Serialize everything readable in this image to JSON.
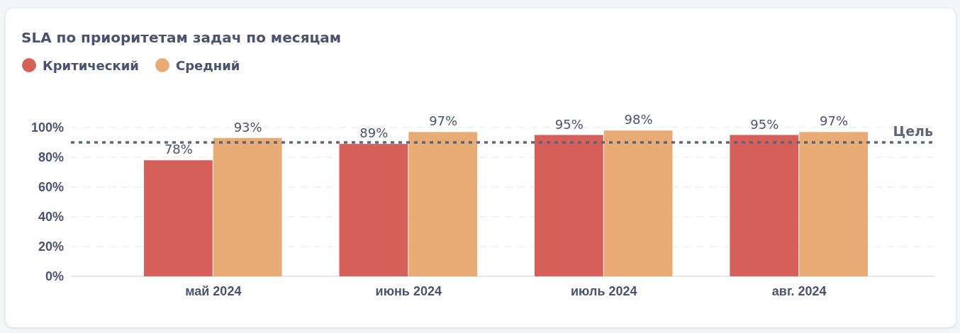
{
  "chart_data": {
    "type": "bar",
    "title": "SLA по приоритетам задач по месяцам",
    "categories": [
      "май 2024",
      "июнь 2024",
      "июль 2024",
      "авг. 2024"
    ],
    "series": [
      {
        "name": "Критический",
        "color": "#d65f59",
        "values": [
          78,
          89,
          95,
          95
        ],
        "value_labels": [
          "78%",
          "89%",
          "95%",
          "95%"
        ]
      },
      {
        "name": "Средний",
        "color": "#e8ab76",
        "values": [
          93,
          97,
          98,
          97
        ],
        "value_labels": [
          "93%",
          "97%",
          "98%",
          "97%"
        ]
      }
    ],
    "ylim": [
      0,
      100
    ],
    "yticks": [
      {
        "value": 0,
        "label": "0%"
      },
      {
        "value": 20,
        "label": "20%"
      },
      {
        "value": 40,
        "label": "40%"
      },
      {
        "value": 60,
        "label": "60%"
      },
      {
        "value": 80,
        "label": "80%"
      },
      {
        "value": 100,
        "label": "100%"
      }
    ],
    "grid": "y",
    "legend": "top left",
    "ref_lines": [
      {
        "axis": "y",
        "value": 90,
        "label": "Цель",
        "color": "#5f6678",
        "line_style": "dotted"
      }
    ]
  }
}
